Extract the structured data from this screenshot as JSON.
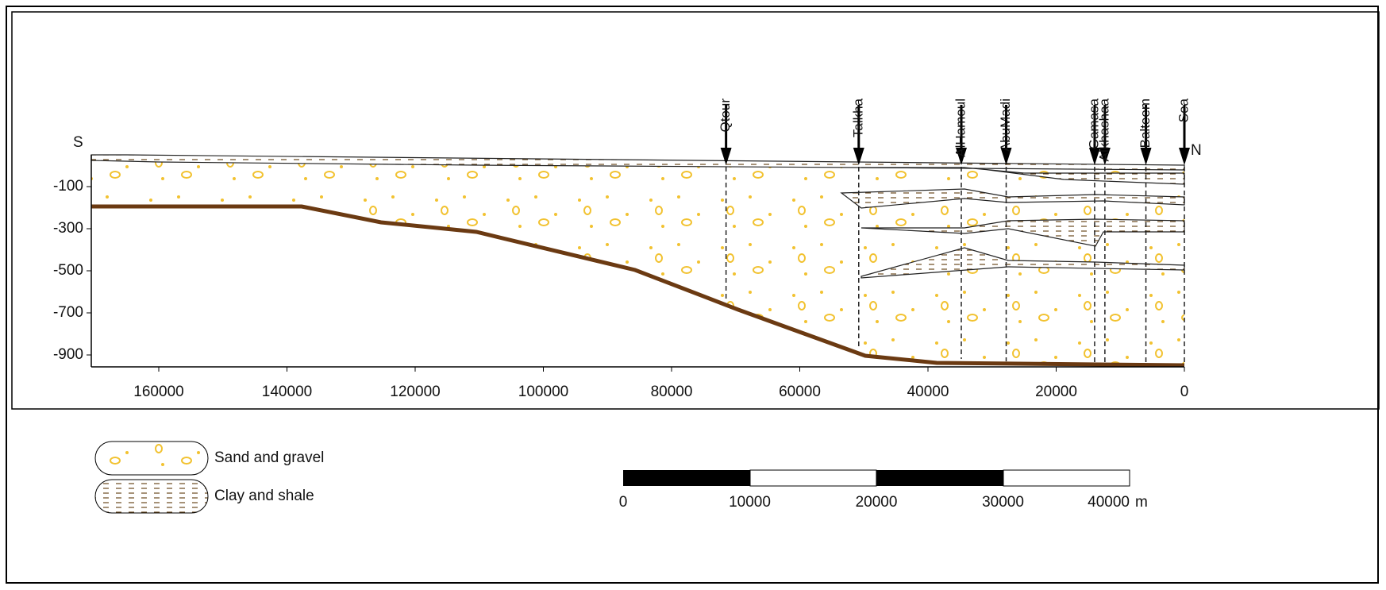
{
  "axes": {
    "x_ticks": [
      160000,
      140000,
      120000,
      100000,
      80000,
      60000,
      40000,
      20000,
      0
    ],
    "y_ticks": [
      -100,
      -300,
      -500,
      -700,
      -900
    ]
  },
  "directions": {
    "left": "S",
    "right": "N"
  },
  "wells": [
    "Qtour",
    "Talkha",
    "AlHamoul",
    "AbuMadi",
    "Gamasa",
    "Alkhashaa",
    "Balteem",
    "Sea"
  ],
  "legend": [
    {
      "label": "Sand and gravel"
    },
    {
      "label": "Clay and shale"
    }
  ],
  "scale_bar": {
    "ticks": [
      0,
      10000,
      20000,
      30000,
      40000
    ],
    "unit": "m"
  }
}
